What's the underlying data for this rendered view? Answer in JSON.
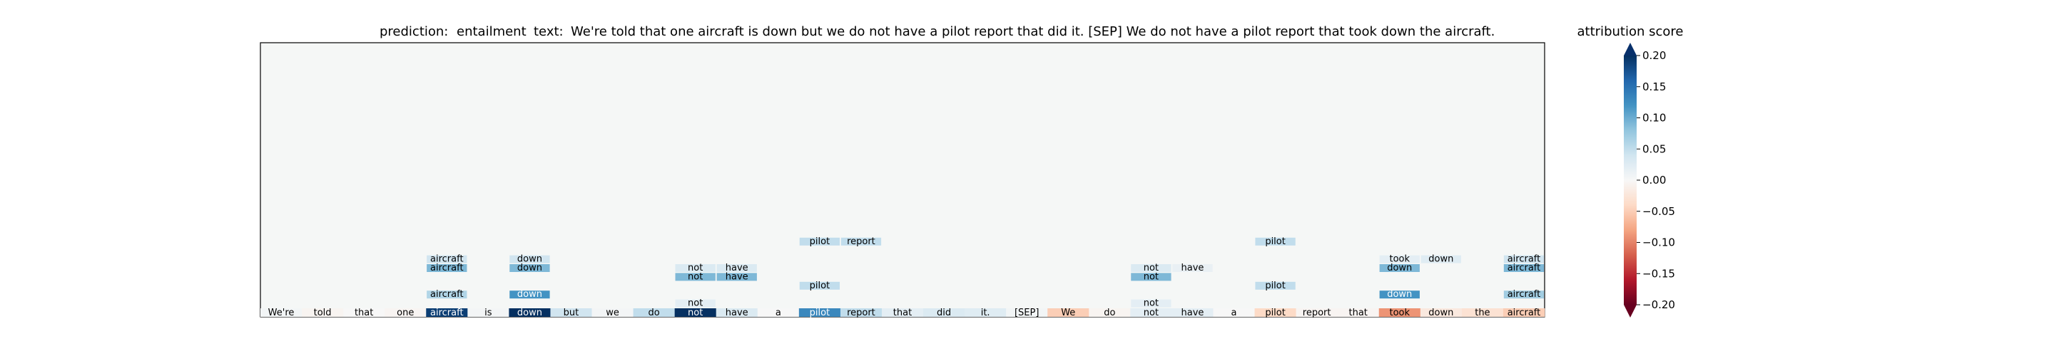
{
  "chart_data": {
    "type": "heatmap",
    "title": {
      "prediction_label": "prediction:",
      "prediction": "entailment",
      "text_label": "text:",
      "text": "We're told that one aircraft is down but we do not have a pilot report that did it. [SEP] We do not have a pilot report that took down the aircraft."
    },
    "tokens": [
      {
        "text": "We're",
        "score": 0.005
      },
      {
        "text": "told",
        "score": -0.005
      },
      {
        "text": "that",
        "score": 0.0
      },
      {
        "text": "one",
        "score": -0.004
      },
      {
        "text": "aircraft",
        "score": 0.19
      },
      {
        "text": "is",
        "score": 0.004
      },
      {
        "text": "down",
        "score": 0.2
      },
      {
        "text": "but",
        "score": 0.04
      },
      {
        "text": "we",
        "score": 0.004
      },
      {
        "text": "do",
        "score": 0.05
      },
      {
        "text": "not",
        "score": 0.2
      },
      {
        "text": "have",
        "score": 0.03
      },
      {
        "text": "a",
        "score": 0.0
      },
      {
        "text": "pilot",
        "score": 0.13
      },
      {
        "text": "report",
        "score": 0.05
      },
      {
        "text": "that",
        "score": 0.02
      },
      {
        "text": "did",
        "score": 0.03
      },
      {
        "text": "it.",
        "score": 0.025
      },
      {
        "text": "[SEP]",
        "score": 0.005
      },
      {
        "text": "We",
        "score": -0.05
      },
      {
        "text": "do",
        "score": -0.005
      },
      {
        "text": "not",
        "score": 0.02
      },
      {
        "text": "have",
        "score": 0.02
      },
      {
        "text": "a",
        "score": 0.0
      },
      {
        "text": "pilot",
        "score": -0.04
      },
      {
        "text": "report",
        "score": -0.004
      },
      {
        "text": "that",
        "score": -0.004
      },
      {
        "text": "took",
        "score": -0.09
      },
      {
        "text": "down",
        "score": -0.02
      },
      {
        "text": "the",
        "score": -0.03
      },
      {
        "text": "aircraft",
        "score": -0.05
      }
    ],
    "groups": [
      {
        "index": 4,
        "rows": [
          {
            "level": 1,
            "items": [
              {
                "text": "aircraft",
                "score": 0.06
              }
            ]
          },
          {
            "level": 4,
            "items": [
              {
                "text": "aircraft",
                "score": 0.09
              }
            ]
          },
          {
            "level": 5,
            "items": [
              {
                "text": "aircraft",
                "score": 0.04
              }
            ]
          }
        ]
      },
      {
        "index": 6,
        "rows": [
          {
            "level": 1,
            "items": [
              {
                "text": "down",
                "score": 0.12
              }
            ]
          },
          {
            "level": 4,
            "items": [
              {
                "text": "down",
                "score": 0.09
              }
            ]
          },
          {
            "level": 5,
            "items": [
              {
                "text": "down",
                "score": 0.04
              }
            ]
          }
        ]
      },
      {
        "index": 10,
        "rows": [
          {
            "level": 0,
            "items": [
              {
                "text": "not",
                "score": 0.02
              }
            ]
          },
          {
            "level": 3,
            "items": [
              {
                "text": "not",
                "score": 0.09
              },
              {
                "text": "have",
                "score": 0.09
              }
            ]
          },
          {
            "level": 4,
            "items": [
              {
                "text": "not",
                "score": 0.03
              },
              {
                "text": "have",
                "score": 0.03
              }
            ]
          }
        ]
      },
      {
        "index": 13,
        "rows": [
          {
            "level": 2,
            "items": [
              {
                "text": "pilot",
                "score": 0.05
              }
            ]
          },
          {
            "level": 7,
            "items": [
              {
                "text": "pilot",
                "score": 0.05
              },
              {
                "text": "report",
                "score": 0.05
              }
            ]
          }
        ]
      },
      {
        "index": 21,
        "rows": [
          {
            "level": 0,
            "items": [
              {
                "text": "not",
                "score": 0.02
              }
            ]
          },
          {
            "level": 3,
            "items": [
              {
                "text": "not",
                "score": 0.09
              }
            ]
          },
          {
            "level": 4,
            "items": [
              {
                "text": "not",
                "score": 0.03
              },
              {
                "text": "have",
                "score": 0.015
              }
            ]
          }
        ]
      },
      {
        "index": 24,
        "rows": [
          {
            "level": 2,
            "items": [
              {
                "text": "pilot",
                "score": 0.05
              }
            ]
          },
          {
            "level": 7,
            "items": [
              {
                "text": "pilot",
                "score": 0.05
              }
            ]
          }
        ]
      },
      {
        "index": 27,
        "rows": [
          {
            "level": 5,
            "items": [
              {
                "text": "took",
                "score": 0.02
              },
              {
                "text": "down",
                "score": 0.025
              }
            ]
          },
          {
            "level": 4,
            "items": [
              {
                "text": "down",
                "score": 0.09
              }
            ]
          },
          {
            "level": 1,
            "items": [
              {
                "text": "down",
                "score": 0.12
              }
            ]
          }
        ]
      },
      {
        "index": 30,
        "rows": [
          {
            "level": 1,
            "items": [
              {
                "text": "aircraft",
                "score": 0.07
              }
            ]
          },
          {
            "level": 4,
            "items": [
              {
                "text": "aircraft",
                "score": 0.09
              }
            ]
          },
          {
            "level": 5,
            "items": [
              {
                "text": "aircraft",
                "score": 0.04
              }
            ]
          }
        ]
      }
    ],
    "colorbar": {
      "label": "attribution score",
      "min": -0.2,
      "max": 0.2,
      "ticks": [
        0.2,
        0.15,
        0.1,
        0.05,
        0.0,
        -0.05,
        -0.1,
        -0.15,
        -0.2
      ],
      "tick_labels": [
        "0.20",
        "0.15",
        "0.10",
        "0.05",
        "0.00",
        "−0.05",
        "−0.10",
        "−0.15",
        "−0.20"
      ],
      "extend": "both",
      "colormap": "RdBu"
    }
  }
}
